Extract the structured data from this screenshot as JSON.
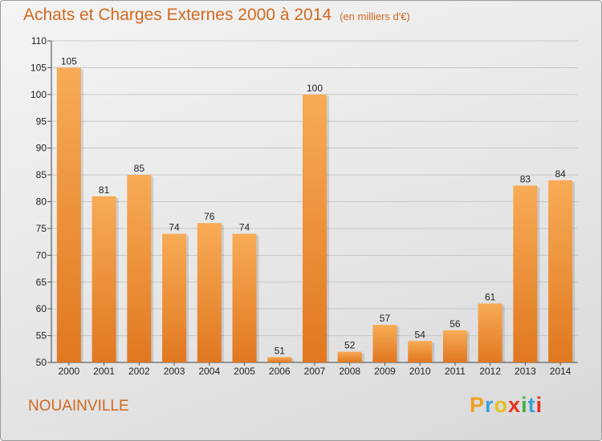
{
  "title": "Achats et Charges Externes 2000 à 2014",
  "subtitle": "(en milliers d'€)",
  "commune": "NOUAINVILLE",
  "logo": {
    "letters": [
      "P",
      "r",
      "o",
      "x",
      "i",
      "t",
      "i"
    ],
    "colors": [
      "#f0a020",
      "#3aa0d8",
      "#e8c020",
      "#e83020",
      "#40b040",
      "#3aa0d8",
      "#e83020"
    ]
  },
  "colors": {
    "bar_light": "#f8ab56",
    "bar_dark": "#e07820",
    "title": "#d2691e"
  },
  "chart_data": {
    "type": "bar",
    "title": "Achats et Charges Externes 2000 à 2014",
    "subtitle": "(en milliers d'€)",
    "categories": [
      "2000",
      "2001",
      "2002",
      "2003",
      "2004",
      "2005",
      "2006",
      "2007",
      "2008",
      "2009",
      "2010",
      "2011",
      "2012",
      "2013",
      "2014"
    ],
    "values": [
      105,
      81,
      85,
      74,
      76,
      74,
      51,
      100,
      52,
      57,
      54,
      56,
      61,
      83,
      84
    ],
    "ylim": [
      50,
      110
    ],
    "yticks": [
      50,
      55,
      60,
      65,
      70,
      75,
      80,
      85,
      90,
      95,
      100,
      105,
      110
    ],
    "grid": true
  }
}
